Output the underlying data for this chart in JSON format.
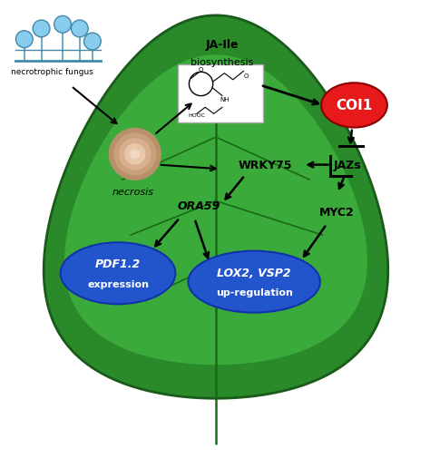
{
  "fig_width": 4.74,
  "fig_height": 5.06,
  "bg_color": "#ffffff",
  "leaf_color_outer": "#2a8a2a",
  "leaf_color_inner": "#3aaa3a",
  "leaf_vein_color": "#1a6a1a",
  "coi1_circle_color": "#e8191a",
  "coi1_text": "COI1",
  "coi1_text_color": "#ffffff",
  "necrosis_text": "necrosis",
  "pdf_ellipse_color": "#2255cc",
  "pdf_text1": "PDF1.2",
  "pdf_text2": "expression",
  "lox_ellipse_color": "#2255cc",
  "lox_text1": "LOX2, VSP2",
  "lox_text2": "up-regulation",
  "ja_ile_text1": "JA-Ile",
  "ja_ile_text2": "biosynthesis",
  "wrky75_text": "WRKY75",
  "jazs_text": "JAZs",
  "myc2_text": "MYC2",
  "ora59_text": "ORA59",
  "necro_fungus_text": "necrotrophic fungus",
  "arrow_color": "#000000",
  "text_color_dark": "#000000"
}
